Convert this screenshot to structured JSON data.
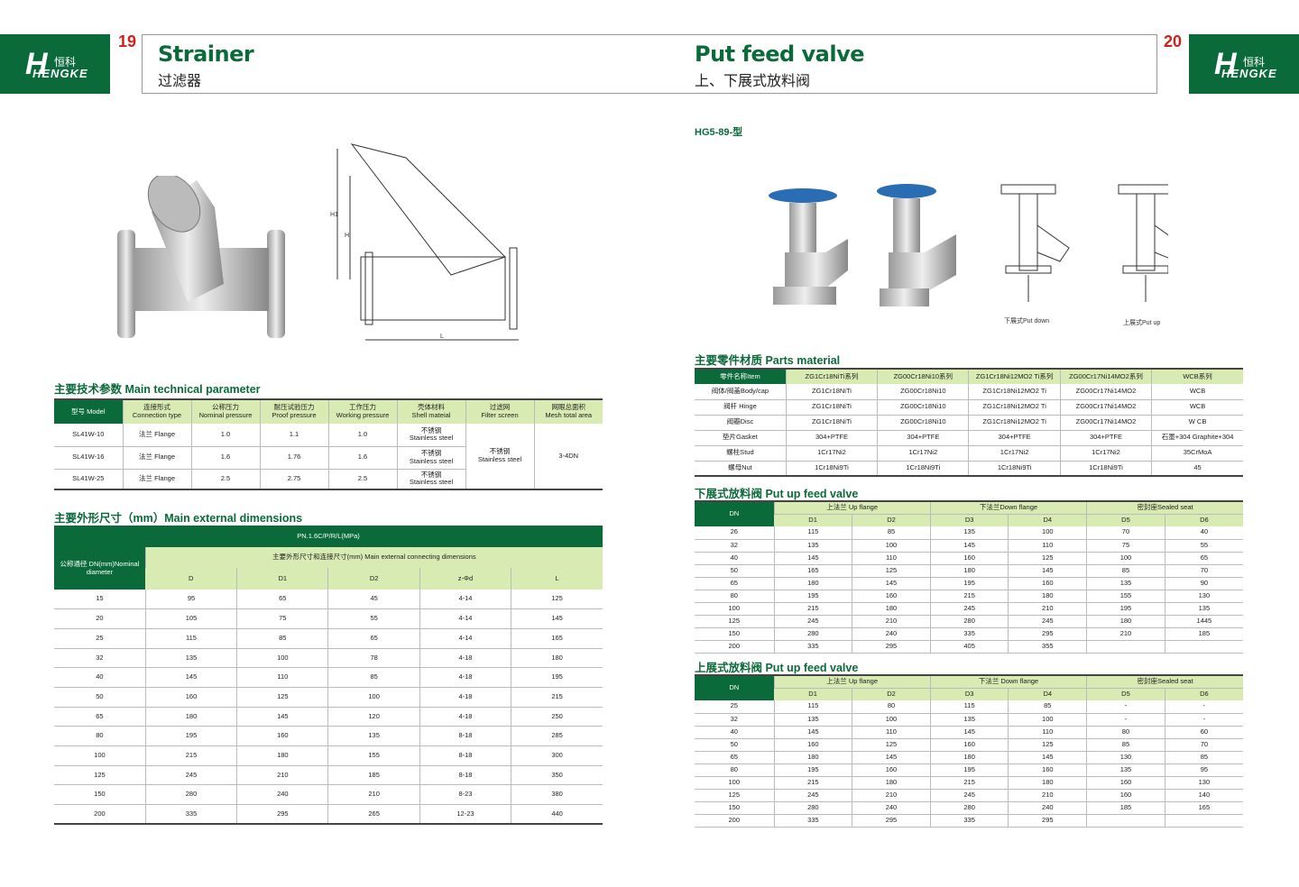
{
  "brand": {
    "name": "HENGKE",
    "cn": "恒科",
    "colors": {
      "green": "#0b6a3a",
      "light": "#d8ebb2",
      "red": "#d0201c"
    }
  },
  "left": {
    "page": "19",
    "title_en": "Strainer",
    "title_cn": "过滤器",
    "tech_title": "主要技术参数 Main technical parameter",
    "tech": {
      "headers": [
        [
          "型号 Model",
          ""
        ],
        [
          "连接形式",
          "Connection type"
        ],
        [
          "公称压力",
          "Nominal pressure"
        ],
        [
          "耐压试验压力",
          "Proof pressure"
        ],
        [
          "工作压力",
          "Working pressure"
        ],
        [
          "壳体材料",
          "Shell mateial"
        ],
        [
          "过滤网",
          "Filter screen"
        ],
        [
          "网眼总面积",
          "Mesh total area"
        ]
      ],
      "rows": [
        [
          "SL41W-10",
          "法兰 Flange",
          "1.0",
          "1.1",
          "1.0",
          "不锈钢 Stainless steel"
        ],
        [
          "SL41W-16",
          "法兰 Flange",
          "1.6",
          "1.76",
          "1.6",
          "不锈钢 Stainless steel"
        ],
        [
          "SL41W-25",
          "法兰 Flange",
          "2.5",
          "2.75",
          "2.5",
          "不锈钢 Stainless steel"
        ]
      ],
      "filter": "不锈钢 Stainless steel",
      "mesh": "3-4DN"
    },
    "dim_title": "主要外形尺寸（mm）Main external dimensions",
    "dim": {
      "pn": "PN.1.6C/P/R/L(MPa)",
      "dn_label": "公称通径 DN(mm)Nominal diameter",
      "group": "主要外形尺寸和连接尺寸(mm) Main external connecting dimensions",
      "cols": [
        "D",
        "D1",
        "D2",
        "z-Φd",
        "L"
      ],
      "rows": [
        [
          "15",
          "95",
          "65",
          "45",
          "4-14",
          "125"
        ],
        [
          "20",
          "105",
          "75",
          "55",
          "4-14",
          "145"
        ],
        [
          "25",
          "115",
          "85",
          "65",
          "4-14",
          "165"
        ],
        [
          "32",
          "135",
          "100",
          "78",
          "4-18",
          "180"
        ],
        [
          "40",
          "145",
          "110",
          "85",
          "4-18",
          "195"
        ],
        [
          "50",
          "160",
          "125",
          "100",
          "4-18",
          "215"
        ],
        [
          "65",
          "180",
          "145",
          "120",
          "4-18",
          "250"
        ],
        [
          "80",
          "195",
          "160",
          "135",
          "8-18",
          "285"
        ],
        [
          "100",
          "215",
          "180",
          "155",
          "8-18",
          "300"
        ],
        [
          "125",
          "245",
          "210",
          "185",
          "8-18",
          "350"
        ],
        [
          "150",
          "280",
          "240",
          "210",
          "8-23",
          "380"
        ],
        [
          "200",
          "335",
          "295",
          "265",
          "12-23",
          "440"
        ]
      ]
    },
    "drawing_labels": {
      "h1": "H1",
      "h": "H",
      "l": "L"
    }
  },
  "right": {
    "page": "20",
    "title_en": "Put feed valve",
    "title_cn": "上、下展式放料阀",
    "model": "HG5-89-型",
    "caption_down": "下展式Put down",
    "caption_up": "上展式Put up",
    "parts_title": "主要零件材质 Parts material",
    "parts": {
      "headers": [
        "零件名称Item",
        "ZG1Cr18NiTi系列",
        "ZG00Cr18Ni10系列",
        "ZG1Cr18Ni12MO2 Ti系列",
        "ZG00Cr17Ni14MO2系列",
        "WCB系列"
      ],
      "rows": [
        [
          "阀体/阀盖Body/cap",
          "ZG1Cr18NiTi",
          "ZG00Cr18Ni10",
          "ZG1Cr18Ni12MO2 Ti",
          "ZG00Cr17Ni14MO2",
          "WCB"
        ],
        [
          "阀杆 Hinge",
          "ZG1Cr18NiTi",
          "ZG00Cr18Ni10",
          "ZG1Cr18Ni12MO2 Ti",
          "ZG00Cr17Ni14MO2",
          "WCB"
        ],
        [
          "阀瓣Disc",
          "ZG1Cr18NiTi",
          "ZG00Cr18Ni10",
          "ZG1Cr18Ni12MO2 Ti",
          "ZG00Cr17Ni14MO2",
          "W CB"
        ],
        [
          "垫片Gasket",
          "304+PTFE",
          "304+PTFE",
          "304+PTFE",
          "304+PTFE",
          "石墨+304 Graphite+304"
        ],
        [
          "螺柱Stud",
          "1Cr17Ni2",
          "1Cr17Ni2",
          "1Cr17Ni2",
          "1Cr17Ni2",
          "35CrMoA"
        ],
        [
          "螺母Nut",
          "1Cr18Ni9Ti",
          "1Cr18Ni9Ti",
          "1Cr18Ni9Ti",
          "1Cr18Ni9Ti",
          "45"
        ]
      ]
    },
    "down_title": "下展式放料阀 Put up feed valve",
    "down": {
      "groups": [
        "上法兰 Up flange",
        "下法兰Down flange",
        "密封座Sealed seat"
      ],
      "cols": [
        "DN",
        "D1",
        "D2",
        "D3",
        "D4",
        "D5",
        "D6"
      ],
      "rows": [
        [
          "26",
          "115",
          "85",
          "135",
          "100",
          "70",
          "40"
        ],
        [
          "32",
          "135",
          "100",
          "145",
          "110",
          "75",
          "55"
        ],
        [
          "40",
          "145",
          "110",
          "160",
          "125",
          "100",
          "65"
        ],
        [
          "50",
          "165",
          "125",
          "180",
          "145",
          "85",
          "70"
        ],
        [
          "65",
          "180",
          "145",
          "195",
          "160",
          "135",
          "90"
        ],
        [
          "80",
          "195",
          "160",
          "215",
          "180",
          "155",
          "130"
        ],
        [
          "100",
          "215",
          "180",
          "245",
          "210",
          "195",
          "135"
        ],
        [
          "125",
          "245",
          "210",
          "280",
          "245",
          "180",
          "1445"
        ],
        [
          "150",
          "280",
          "240",
          "335",
          "295",
          "210",
          "185"
        ],
        [
          "200",
          "335",
          "295",
          "405",
          "355",
          "",
          ""
        ]
      ]
    },
    "up_title": "上展式放料阀 Put up feed valve",
    "up": {
      "groups": [
        "上法兰 Up flange",
        "下法兰 Down flange",
        "密封座Sealed seat"
      ],
      "cols": [
        "DN",
        "D1",
        "D2",
        "D3",
        "D4",
        "D5",
        "D6"
      ],
      "rows": [
        [
          "25",
          "115",
          "80",
          "115",
          "85",
          "-",
          "-"
        ],
        [
          "32",
          "135",
          "100",
          "135",
          "100",
          "-",
          "-"
        ],
        [
          "40",
          "145",
          "110",
          "145",
          "110",
          "80",
          "60"
        ],
        [
          "50",
          "160",
          "125",
          "160",
          "125",
          "85",
          "70"
        ],
        [
          "65",
          "180",
          "145",
          "180",
          "145",
          "130",
          "85"
        ],
        [
          "80",
          "195",
          "160",
          "195",
          "160",
          "135",
          "95"
        ],
        [
          "100",
          "215",
          "180",
          "215",
          "180",
          "160",
          "130"
        ],
        [
          "125",
          "245",
          "210",
          "245",
          "210",
          "160",
          "140"
        ],
        [
          "150",
          "280",
          "240",
          "280",
          "240",
          "185",
          "165"
        ],
        [
          "200",
          "335",
          "295",
          "335",
          "295",
          "",
          ""
        ]
      ]
    }
  }
}
